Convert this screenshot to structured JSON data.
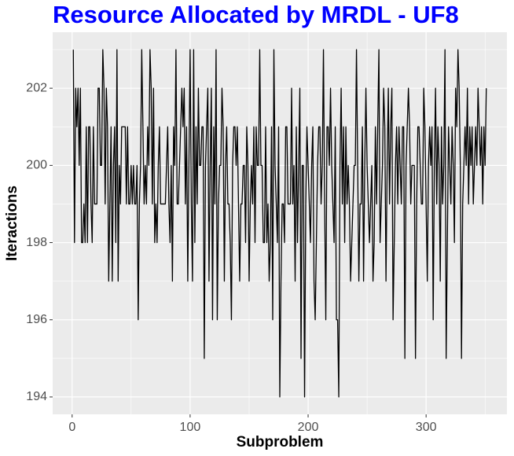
{
  "chart_data": {
    "type": "line",
    "title": "Resource Allocated by MRDL - UF8",
    "x_label": "Subproblem",
    "y_label": "Iteractions",
    "title_color": "#0000ff",
    "color": "#000000",
    "grid": true,
    "xlim": [
      -16.5,
      368.5
    ],
    "ylim": [
      193.55,
      203.45
    ],
    "xticks": [
      0,
      100,
      200,
      300
    ],
    "yticks": [
      194,
      196,
      198,
      200,
      202
    ],
    "minor_xticks": [
      50,
      150,
      250,
      350
    ],
    "minor_yticks": [
      195,
      197,
      199,
      201,
      203
    ],
    "x": [
      1,
      2,
      3,
      4,
      5,
      6,
      7,
      8,
      9,
      10,
      11,
      12,
      13,
      14,
      15,
      16,
      17,
      18,
      19,
      20,
      21,
      22,
      23,
      24,
      25,
      26,
      27,
      28,
      29,
      30,
      31,
      32,
      33,
      34,
      35,
      36,
      37,
      38,
      39,
      40,
      41,
      42,
      43,
      44,
      45,
      46,
      47,
      48,
      49,
      50,
      51,
      52,
      53,
      54,
      55,
      56,
      57,
      58,
      59,
      60,
      61,
      62,
      63,
      64,
      65,
      66,
      67,
      68,
      69,
      70,
      71,
      72,
      73,
      74,
      75,
      76,
      77,
      78,
      79,
      80,
      81,
      82,
      83,
      84,
      85,
      86,
      87,
      88,
      89,
      90,
      91,
      92,
      93,
      94,
      95,
      96,
      97,
      98,
      99,
      100,
      101,
      102,
      103,
      104,
      105,
      106,
      107,
      108,
      109,
      110,
      111,
      112,
      113,
      114,
      115,
      116,
      117,
      118,
      119,
      120,
      121,
      122,
      123,
      124,
      125,
      126,
      127,
      128,
      129,
      130,
      131,
      132,
      133,
      134,
      135,
      136,
      137,
      138,
      139,
      140,
      141,
      142,
      143,
      144,
      145,
      146,
      147,
      148,
      149,
      150,
      151,
      152,
      153,
      154,
      155,
      156,
      157,
      158,
      159,
      160,
      161,
      162,
      163,
      164,
      165,
      166,
      167,
      168,
      169,
      170,
      171,
      172,
      173,
      174,
      175,
      176,
      177,
      178,
      179,
      180,
      181,
      182,
      183,
      184,
      185,
      186,
      187,
      188,
      189,
      190,
      191,
      192,
      193,
      194,
      195,
      196,
      197,
      198,
      199,
      200,
      201,
      202,
      203,
      204,
      205,
      206,
      207,
      208,
      209,
      210,
      211,
      212,
      213,
      214,
      215,
      216,
      217,
      218,
      219,
      220,
      221,
      222,
      223,
      224,
      225,
      226,
      227,
      228,
      229,
      230,
      231,
      232,
      233,
      234,
      235,
      236,
      237,
      238,
      239,
      240,
      241,
      242,
      243,
      244,
      245,
      246,
      247,
      248,
      249,
      250,
      251,
      252,
      253,
      254,
      255,
      256,
      257,
      258,
      259,
      260,
      261,
      262,
      263,
      264,
      265,
      266,
      267,
      268,
      269,
      270,
      271,
      272,
      273,
      274,
      275,
      276,
      277,
      278,
      279,
      280,
      281,
      282,
      283,
      284,
      285,
      286,
      287,
      288,
      289,
      290,
      291,
      292,
      293,
      294,
      295,
      296,
      297,
      298,
      299,
      300,
      301,
      302,
      303,
      304,
      305,
      306,
      307,
      308,
      309,
      310,
      311,
      312,
      313,
      314,
      315,
      316,
      317,
      318,
      319,
      320,
      321,
      322,
      323,
      324,
      325,
      326,
      327,
      328,
      329,
      330,
      331,
      332,
      333,
      334,
      335,
      336,
      337,
      338,
      339,
      340,
      341,
      342,
      343,
      344,
      345,
      346,
      347,
      348,
      349,
      350,
      351
    ],
    "values": [
      203,
      198,
      202,
      201,
      202,
      200,
      202,
      198,
      198,
      199,
      198,
      201,
      198,
      201,
      201,
      199,
      198,
      201,
      199,
      199,
      199,
      202,
      202,
      200,
      200,
      203,
      202,
      199,
      202,
      201,
      197,
      199,
      201,
      197,
      200,
      201,
      198,
      203,
      197,
      200,
      199,
      201,
      201,
      201,
      201,
      199,
      201,
      199,
      199,
      200,
      199,
      200,
      199,
      199,
      200,
      196,
      199,
      200,
      203,
      201,
      199,
      200,
      199,
      201,
      200,
      203,
      202,
      199,
      202,
      198,
      199,
      198,
      200,
      201,
      199,
      199,
      199,
      199,
      199,
      200,
      201,
      199,
      198,
      200,
      197,
      201,
      200,
      203,
      199,
      199,
      200,
      201,
      202,
      201,
      202,
      199,
      201,
      197,
      200,
      203,
      199,
      197,
      203,
      198,
      201,
      199,
      202,
      200,
      200,
      201,
      201,
      195,
      200,
      201,
      202,
      197,
      200,
      202,
      196,
      201,
      199,
      203,
      196,
      199,
      200,
      200,
      202,
      201,
      197,
      200,
      201,
      199,
      199,
      198,
      196,
      200,
      201,
      201,
      200,
      201,
      199,
      197,
      199,
      199,
      200,
      200,
      198,
      201,
      200,
      197,
      199,
      200,
      199,
      201,
      198,
      201,
      200,
      200,
      203,
      200,
      200,
      198,
      198,
      201,
      198,
      199,
      197,
      198,
      201,
      196,
      203,
      200,
      199,
      198,
      201,
      194,
      197,
      199,
      199,
      198,
      201,
      201,
      199,
      199,
      199,
      202,
      199,
      200,
      197,
      201,
      198,
      200,
      202,
      195,
      200,
      200,
      194,
      199,
      201,
      200,
      199,
      198,
      200,
      201,
      197,
      196,
      198,
      200,
      201,
      201,
      199,
      200,
      203,
      199,
      196,
      201,
      201,
      200,
      202,
      200,
      199,
      198,
      201,
      196,
      196,
      194,
      200,
      202,
      199,
      201,
      198,
      201,
      199,
      200,
      199,
      197,
      198,
      199,
      200,
      200,
      203,
      200,
      197,
      199,
      199,
      201,
      197,
      200,
      202,
      200,
      199,
      198,
      199,
      200,
      197,
      198,
      201,
      199,
      201,
      203,
      198,
      199,
      200,
      202,
      201,
      197,
      200,
      202,
      199,
      201,
      202,
      196,
      198,
      200,
      201,
      199,
      201,
      200,
      199,
      201,
      201,
      195,
      200,
      201,
      202,
      201,
      199,
      200,
      200,
      200,
      195,
      199,
      201,
      201,
      200,
      199,
      199,
      202,
      201,
      199,
      197,
      200,
      201,
      200,
      201,
      196,
      200,
      202,
      199,
      201,
      200,
      197,
      201,
      199,
      200,
      203,
      195,
      198,
      201,
      200,
      199,
      201,
      200,
      198,
      202,
      201,
      203,
      202,
      200,
      195,
      199,
      200,
      201,
      200,
      202,
      199,
      201,
      200,
      201,
      199,
      200,
      201,
      200,
      202,
      201,
      200,
      201,
      199,
      201,
      200,
      202
    ]
  }
}
